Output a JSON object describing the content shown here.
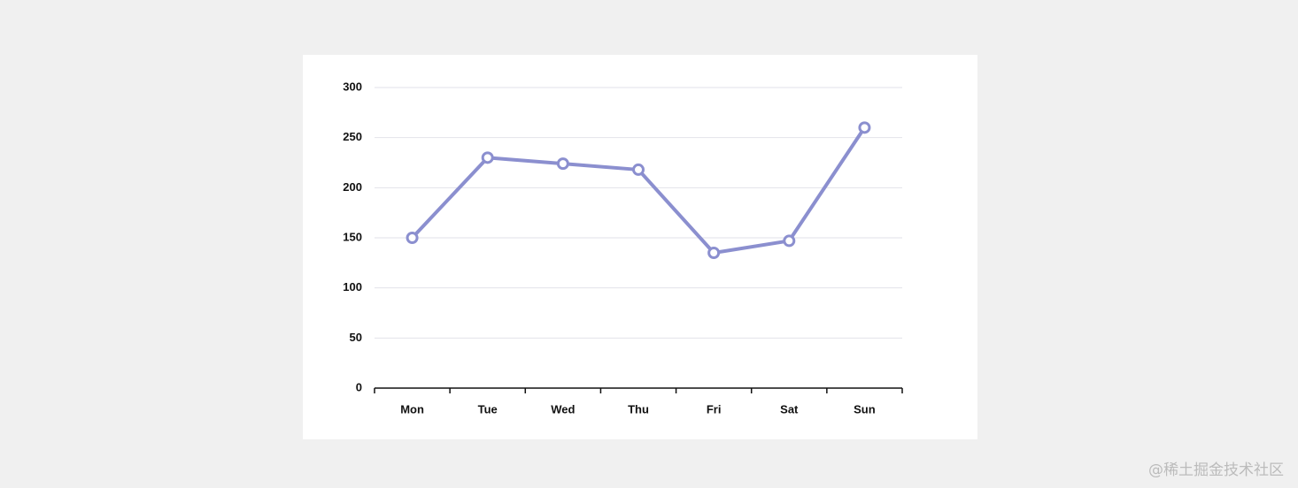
{
  "chart_data": {
    "type": "line",
    "categories": [
      "Mon",
      "Tue",
      "Wed",
      "Thu",
      "Fri",
      "Sat",
      "Sun"
    ],
    "values": [
      150,
      230,
      224,
      218,
      135,
      147,
      260
    ],
    "color": "#8b8fcf",
    "ylim": [
      0,
      300
    ],
    "yticks": [
      0,
      50,
      100,
      150,
      200,
      250,
      300
    ],
    "grid": true
  },
  "watermark": "@稀土掘金技术社区"
}
